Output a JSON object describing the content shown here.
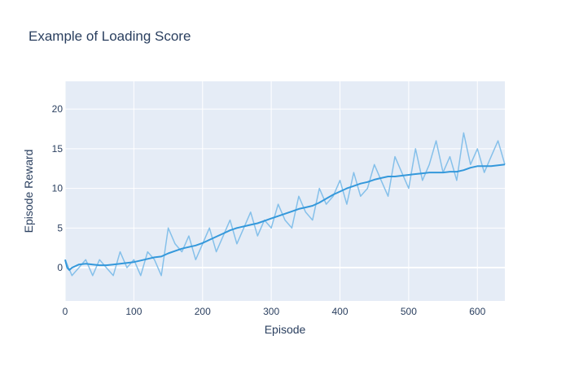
{
  "chart_data": {
    "type": "line",
    "title": "Example of Loading Score",
    "xlabel": "Episode",
    "ylabel": "Episode Reward",
    "xlim": [
      0,
      640
    ],
    "ylim": [
      -4.2,
      23.5
    ],
    "xticks": [
      0,
      100,
      200,
      300,
      400,
      500,
      600
    ],
    "yticks": [
      0,
      5,
      10,
      15,
      20
    ],
    "grid": true,
    "legend": "none",
    "colors": {
      "plot_bg": "#e5ecf6",
      "grid": "#ffffff",
      "raw": "#85c0ea",
      "avg": "#3498db"
    },
    "series": [
      {
        "role": "raw",
        "x": [
          0,
          10,
          20,
          30,
          40,
          50,
          60,
          70,
          80,
          90,
          100,
          110,
          120,
          130,
          140,
          150,
          160,
          170,
          180,
          190,
          200,
          210,
          220,
          230,
          240,
          250,
          260,
          270,
          280,
          290,
          300,
          310,
          320,
          330,
          340,
          350,
          360,
          370,
          380,
          390,
          400,
          410,
          420,
          430,
          440,
          450,
          460,
          470,
          480,
          490,
          500,
          510,
          520,
          530,
          540,
          550,
          560,
          570,
          580,
          590,
          600,
          610,
          620,
          630,
          640
        ],
        "y": [
          1,
          -1,
          0,
          1,
          -1,
          1,
          0,
          -1,
          2,
          0,
          1,
          -1,
          2,
          1,
          -1,
          5,
          3,
          2,
          4,
          1,
          3,
          5,
          2,
          4,
          6,
          3,
          5,
          7,
          4,
          6,
          5,
          8,
          6,
          5,
          9,
          7,
          6,
          10,
          8,
          9,
          11,
          8,
          12,
          9,
          10,
          13,
          11,
          9,
          14,
          12,
          10,
          15,
          11,
          13,
          16,
          12,
          14,
          11,
          17,
          13,
          15,
          12,
          14,
          16,
          13
        ]
      },
      {
        "role": "moving-average",
        "x": [
          0,
          3,
          6,
          10,
          20,
          30,
          40,
          50,
          60,
          70,
          80,
          90,
          100,
          110,
          120,
          130,
          140,
          150,
          160,
          170,
          180,
          190,
          200,
          210,
          220,
          230,
          240,
          250,
          260,
          270,
          280,
          290,
          300,
          310,
          320,
          330,
          340,
          350,
          360,
          370,
          380,
          390,
          400,
          410,
          420,
          430,
          440,
          450,
          460,
          470,
          480,
          490,
          500,
          510,
          520,
          530,
          540,
          550,
          560,
          570,
          580,
          590,
          600,
          610,
          620,
          630,
          640
        ],
        "y": [
          1,
          0,
          -0.3,
          0,
          0.4,
          0.5,
          0.4,
          0.3,
          0.3,
          0.4,
          0.5,
          0.6,
          0.7,
          0.9,
          1.1,
          1.3,
          1.4,
          1.8,
          2.1,
          2.4,
          2.6,
          2.8,
          3.1,
          3.5,
          3.9,
          4.3,
          4.7,
          5.0,
          5.2,
          5.4,
          5.6,
          5.9,
          6.2,
          6.5,
          6.8,
          7.1,
          7.4,
          7.6,
          7.8,
          8.2,
          8.7,
          9.2,
          9.6,
          10.0,
          10.3,
          10.6,
          10.8,
          11.1,
          11.3,
          11.5,
          11.5,
          11.6,
          11.7,
          11.8,
          11.9,
          12.0,
          12.0,
          12.0,
          12.1,
          12.1,
          12.3,
          12.6,
          12.8,
          12.8,
          12.8,
          12.9,
          13.0
        ]
      }
    ]
  }
}
